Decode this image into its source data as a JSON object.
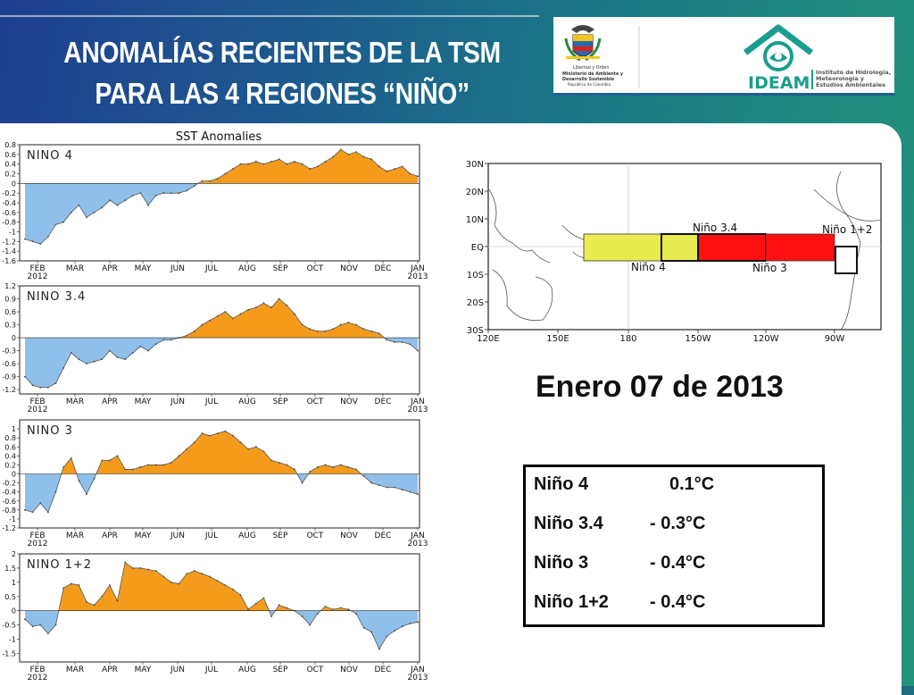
{
  "slide": {
    "title_line1": "ANOMALÍAS RECIENTES DE LA TSM",
    "title_line2": "PARA LAS 4 REGIONES “NIÑO”",
    "date": "Enero 07 de 2013"
  },
  "logos": {
    "ministry_line1": "Libertad y Orden",
    "ministry_line2": "Ministerio de Ambiente y",
    "ministry_line3": "Desarrollo Sostenible",
    "ministry_line4": "República de Colombia",
    "ideam_name": "IDEAM",
    "ideam_line1": "Instituto de Hidrología,",
    "ideam_line2": "Meteorología y",
    "ideam_line3": "Estudios Ambientales"
  },
  "summary_table": [
    {
      "region": "Niño 4",
      "value": "0.1°C"
    },
    {
      "region": "Niño 3.4",
      "value": "-  0.3°C"
    },
    {
      "region": "Niño 3",
      "value": "-  0.4°C"
    },
    {
      "region": "Niño 1+2",
      "value": "-  0.4°C"
    }
  ],
  "map": {
    "lat_labels": [
      "30N",
      "20N",
      "10N",
      "EQ",
      "10S",
      "20S",
      "30S"
    ],
    "lon_labels": [
      "120E",
      "150E",
      "180",
      "150W",
      "120W",
      "90W"
    ],
    "regions": [
      {
        "name": "Niño 4",
        "color": "#e8ec50"
      },
      {
        "name": "Niño 3.4",
        "color": "#e8ec50"
      },
      {
        "name": "Niño 3",
        "color": "#ff1010"
      },
      {
        "name": "Niño 1+2",
        "color": "#ffffff"
      }
    ]
  },
  "chart_data": {
    "type": "area",
    "title": "SST Anomalies",
    "x_labels": [
      "FEB",
      "MAR",
      "APR",
      "MAY",
      "JUN",
      "JUL",
      "AUG",
      "SEP",
      "OCT",
      "NOV",
      "DEC",
      "JAN"
    ],
    "x_year_start": "2012",
    "x_year_end": "2013",
    "positive_color": "#f59b1c",
    "negative_color": "#8fc0ec",
    "panels": [
      {
        "name": "NINO 4",
        "ylim": [
          -1.6,
          0.8
        ],
        "yticks": [
          "0.8",
          "0.6",
          "0.4",
          "0.2",
          "0",
          "-0.2",
          "-0.4",
          "-0.6",
          "-0.8",
          "-1",
          "-1.2",
          "-1.4",
          "-1.6"
        ],
        "ytick_values": [
          0.8,
          0.6,
          0.4,
          0.2,
          0,
          -0.2,
          -0.4,
          -0.6,
          -0.8,
          -1,
          -1.2,
          -1.4,
          -1.6
        ],
        "values": [
          -1.15,
          -1.2,
          -1.25,
          -1.1,
          -0.85,
          -0.8,
          -0.6,
          -0.45,
          -0.7,
          -0.6,
          -0.5,
          -0.35,
          -0.45,
          -0.35,
          -0.25,
          -0.2,
          -0.45,
          -0.25,
          -0.2,
          -0.2,
          -0.2,
          -0.15,
          -0.05,
          0.05,
          0.05,
          0.1,
          0.2,
          0.3,
          0.4,
          0.4,
          0.45,
          0.4,
          0.45,
          0.5,
          0.4,
          0.45,
          0.4,
          0.3,
          0.35,
          0.45,
          0.55,
          0.7,
          0.6,
          0.65,
          0.55,
          0.5,
          0.35,
          0.25,
          0.3,
          0.35,
          0.2,
          0.15
        ]
      },
      {
        "name": "NINO 3.4",
        "ylim": [
          -1.3,
          1.2
        ],
        "yticks": [
          "1.2",
          "0.9",
          "0.6",
          "0.3",
          "0",
          "-0.3",
          "-0.6",
          "-0.9",
          "-1.2"
        ],
        "ytick_values": [
          1.2,
          0.9,
          0.6,
          0.3,
          0,
          -0.3,
          -0.6,
          -0.9,
          -1.2
        ],
        "values": [
          -0.9,
          -1.1,
          -1.15,
          -1.15,
          -1.05,
          -0.7,
          -0.35,
          -0.5,
          -0.6,
          -0.55,
          -0.5,
          -0.3,
          -0.45,
          -0.5,
          -0.35,
          -0.2,
          -0.3,
          -0.15,
          -0.05,
          -0.05,
          0,
          0.05,
          0.15,
          0.3,
          0.4,
          0.5,
          0.6,
          0.45,
          0.55,
          0.65,
          0.7,
          0.8,
          0.7,
          0.9,
          0.75,
          0.55,
          0.3,
          0.2,
          0.15,
          0.15,
          0.2,
          0.3,
          0.35,
          0.3,
          0.2,
          0.15,
          0.1,
          -0.05,
          -0.1,
          -0.1,
          -0.15,
          -0.3
        ]
      },
      {
        "name": "NINO 3",
        "ylim": [
          -1.2,
          1.2
        ],
        "yticks": [
          "1",
          "0.8",
          "0.6",
          "0.4",
          "0.2",
          "0",
          "-0.2",
          "-0.4",
          "-0.6",
          "-0.8",
          "-1",
          "-1.2"
        ],
        "ytick_values": [
          1,
          0.8,
          0.6,
          0.4,
          0.2,
          0,
          -0.2,
          -0.4,
          -0.6,
          -0.8,
          -1,
          -1.2
        ],
        "values": [
          -0.8,
          -0.85,
          -0.65,
          -0.85,
          -0.4,
          0.15,
          0.35,
          -0.15,
          -0.45,
          -0.1,
          0.3,
          0.3,
          0.4,
          0.1,
          0.1,
          0.15,
          0.2,
          0.2,
          0.2,
          0.25,
          0.4,
          0.55,
          0.7,
          0.9,
          0.85,
          0.9,
          0.95,
          0.85,
          0.7,
          0.55,
          0.6,
          0.5,
          0.3,
          0.25,
          0.2,
          0.1,
          -0.2,
          0.05,
          0.15,
          0.2,
          0.15,
          0.2,
          0.15,
          0.1,
          -0.05,
          -0.2,
          -0.25,
          -0.3,
          -0.3,
          -0.35,
          -0.4,
          -0.45
        ]
      },
      {
        "name": "NINO 1+2",
        "ylim": [
          -1.8,
          2.0
        ],
        "yticks": [
          "2",
          "1.5",
          "1",
          "0.5",
          "0",
          "-0.5",
          "-1",
          "-1.5"
        ],
        "ytick_values": [
          2,
          1.5,
          1,
          0.5,
          0,
          -0.5,
          -1,
          -1.5
        ],
        "values": [
          -0.3,
          -0.55,
          -0.5,
          -0.8,
          -0.5,
          0.8,
          0.95,
          0.9,
          0.3,
          0.2,
          0.5,
          0.9,
          0.35,
          1.7,
          1.5,
          1.5,
          1.45,
          1.4,
          1.2,
          1.0,
          0.95,
          1.3,
          1.4,
          1.3,
          1.2,
          1.05,
          0.9,
          0.75,
          0.55,
          0.05,
          0.25,
          0.45,
          -0.2,
          0.2,
          0.1,
          0.0,
          -0.2,
          -0.5,
          -0.1,
          0.15,
          0.05,
          0.1,
          0.05,
          -0.1,
          -0.6,
          -0.75,
          -1.35,
          -0.9,
          -0.7,
          -0.55,
          -0.45,
          -0.4
        ]
      }
    ]
  }
}
